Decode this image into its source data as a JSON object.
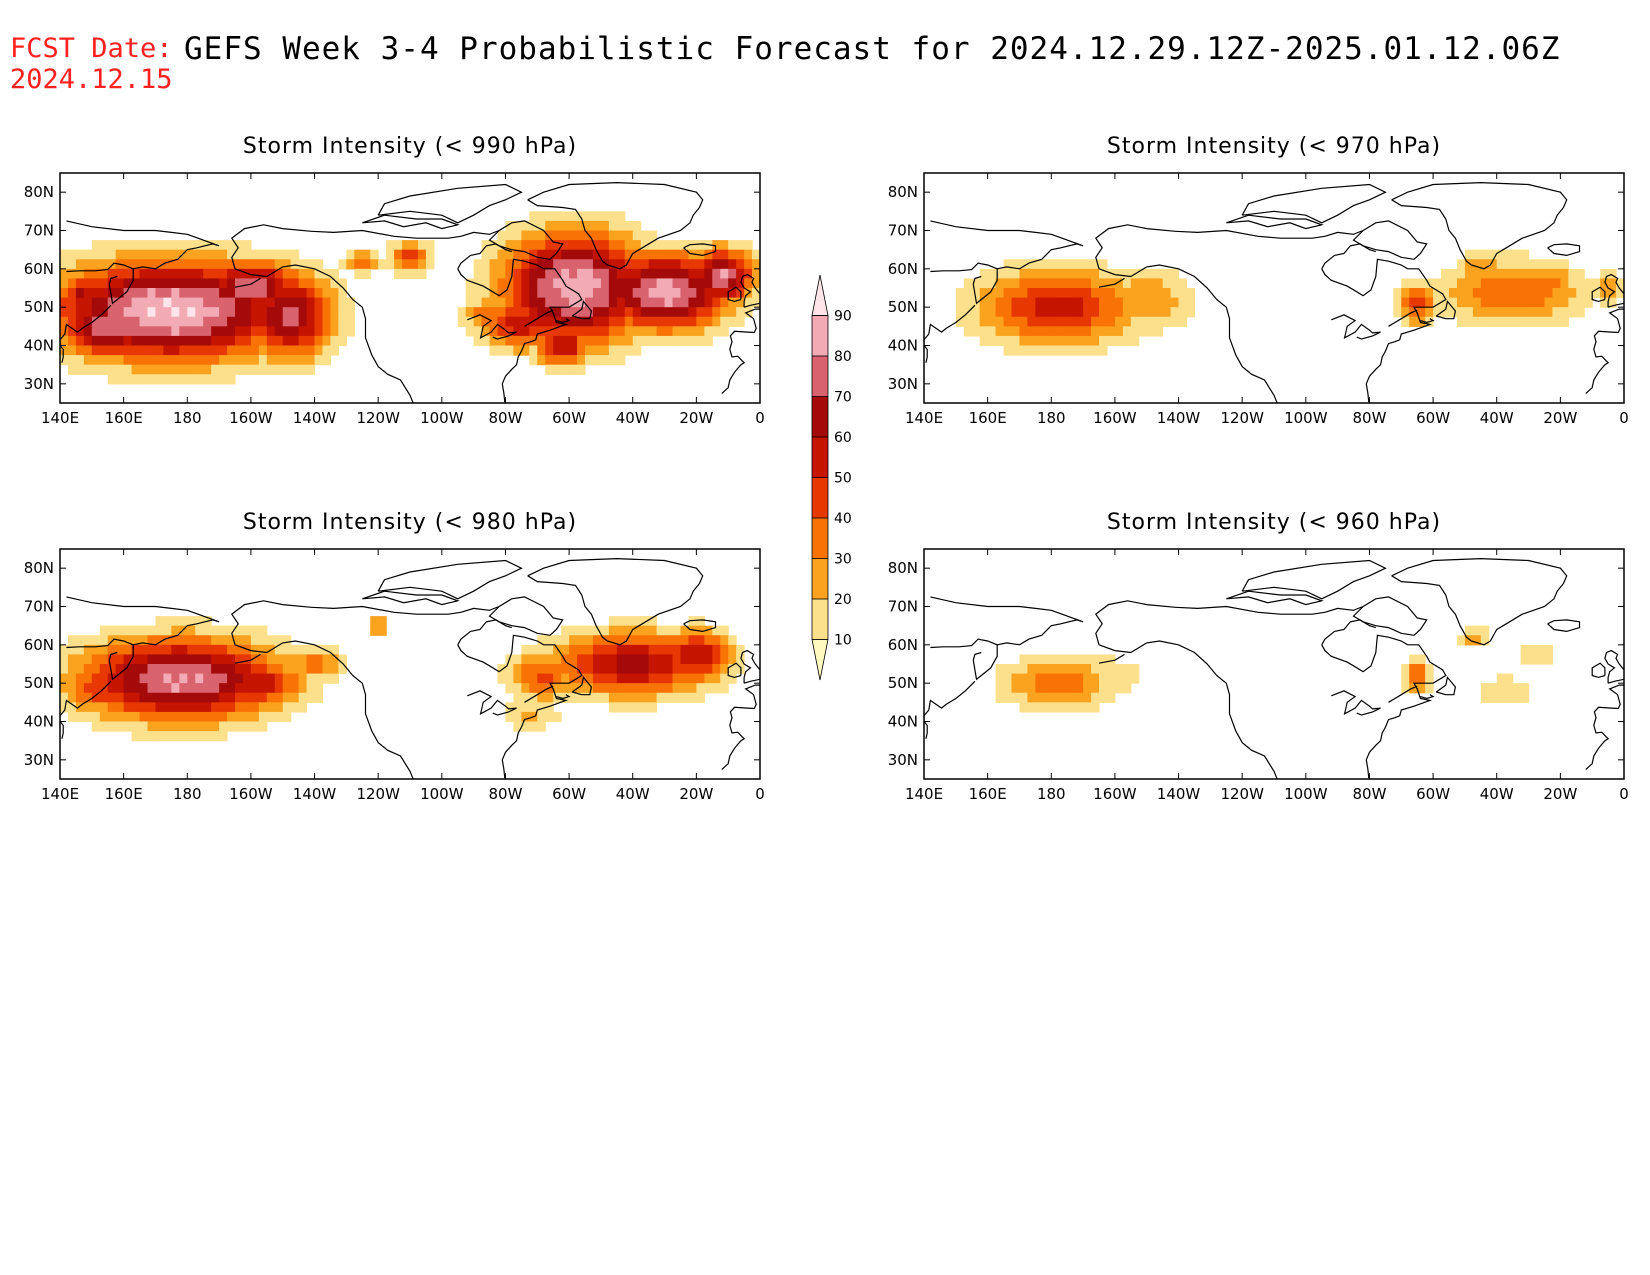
{
  "header": {
    "fcst_label": "FCST Date:",
    "fcst_date": "2024.12.15",
    "title": "GEFS Week 3-4 Probabilistic Forecast for 2024.12.29.12Z-2025.01.12.06Z"
  },
  "colors": {
    "levels": [
      10,
      20,
      30,
      40,
      50,
      60,
      70,
      80,
      90
    ],
    "fills": [
      "#fff9c0",
      "#fde08c",
      "#fba21e",
      "#f97304",
      "#e63800",
      "#c51400",
      "#a50a0a",
      "#d8626e",
      "#f2aab4",
      "#fde5ea"
    ]
  },
  "axes": {
    "lon_labels": [
      "140E",
      "160E",
      "180",
      "160W",
      "140W",
      "120W",
      "100W",
      "80W",
      "60W",
      "40W",
      "20W",
      "0"
    ],
    "lat_labels": [
      "80N",
      "70N",
      "60N",
      "50N",
      "40N",
      "30N"
    ]
  },
  "colorbar": {
    "labels": [
      "10",
      "20",
      "30",
      "40",
      "50",
      "60",
      "70",
      "80",
      "90"
    ]
  },
  "panels": [
    {
      "id": "p990",
      "title": "Storm Intensity (< 990 hPa)",
      "blobs": [
        {
          "lon": 175,
          "lat": 49,
          "sx": 26,
          "sy": 9,
          "peak": 96,
          "cut": 68
        },
        {
          "lon": -148,
          "lat": 48,
          "sx": 10,
          "sy": 8,
          "peak": 74
        },
        {
          "lon": -160,
          "lat": 55,
          "sx": 12,
          "sy": 5,
          "peak": 78
        },
        {
          "lon": 155,
          "lat": 45,
          "sx": 10,
          "sy": 6,
          "peak": 80
        },
        {
          "lon": 147,
          "lat": 53,
          "sx": 5,
          "sy": 4,
          "peak": 62
        },
        {
          "lon": -110,
          "lat": 63,
          "sx": 5,
          "sy": 3,
          "peak": 45
        },
        {
          "lon": -125,
          "lat": 62,
          "sx": 4,
          "sy": 2,
          "peak": 40
        },
        {
          "lon": -58,
          "lat": 55,
          "sx": 16,
          "sy": 10,
          "peak": 92,
          "cut": 66
        },
        {
          "lon": -30,
          "lat": 54,
          "sx": 14,
          "sy": 7,
          "peak": 90,
          "cut": 66
        },
        {
          "lon": -12,
          "lat": 58,
          "sx": 7,
          "sy": 5,
          "peak": 82
        },
        {
          "lon": -75,
          "lat": 46,
          "sx": 9,
          "sy": 5,
          "peak": 58
        },
        {
          "lon": -62,
          "lat": 40,
          "sx": 6,
          "sy": 4,
          "peak": 62
        },
        {
          "lon": -85,
          "lat": 48,
          "sx": 6,
          "sy": 3,
          "peak": 38
        }
      ]
    },
    {
      "id": "p970",
      "title": "Storm Intensity (< 970 hPa)",
      "blobs": [
        {
          "lon": -178,
          "lat": 50,
          "sx": 18,
          "sy": 7,
          "peak": 55
        },
        {
          "lon": 178,
          "lat": 50,
          "sx": 8,
          "sy": 4,
          "peak": 22
        },
        {
          "lon": -150,
          "lat": 52,
          "sx": 10,
          "sy": 6,
          "peak": 30
        },
        {
          "lon": -35,
          "lat": 54,
          "sx": 16,
          "sy": 6,
          "peak": 40
        },
        {
          "lon": -22,
          "lat": 57,
          "sx": 5,
          "sy": 3,
          "peak": 35
        },
        {
          "lon": -65,
          "lat": 51,
          "sx": 5,
          "sy": 4,
          "peak": 42
        },
        {
          "lon": -5,
          "lat": 55,
          "sx": 5,
          "sy": 3,
          "peak": 25
        },
        {
          "lon": -45,
          "lat": 60,
          "sx": 5,
          "sy": 3,
          "peak": 30
        }
      ]
    },
    {
      "id": "p980",
      "title": "Storm Intensity (< 980 hPa)",
      "blobs": [
        {
          "lon": 178,
          "lat": 51,
          "sx": 22,
          "sy": 7.5,
          "peak": 86,
          "cut": 62
        },
        {
          "lon": -160,
          "lat": 50,
          "sx": 12,
          "sy": 5,
          "peak": 60
        },
        {
          "lon": 152,
          "lat": 49,
          "sx": 8,
          "sy": 5,
          "peak": 48
        },
        {
          "lon": -140,
          "lat": 55,
          "sx": 6,
          "sy": 3,
          "peak": 38
        },
        {
          "lon": -40,
          "lat": 55,
          "sx": 18,
          "sy": 6,
          "peak": 64
        },
        {
          "lon": -20,
          "lat": 57,
          "sx": 8,
          "sy": 5,
          "peak": 60
        },
        {
          "lon": -68,
          "lat": 52,
          "sx": 8,
          "sy": 5,
          "peak": 42
        },
        {
          "lon": -72,
          "lat": 42,
          "sx": 7,
          "sy": 3,
          "peak": 22
        },
        {
          "lon": -120,
          "lat": 65,
          "sx": 2,
          "sy": 2,
          "peak": 42
        }
      ]
    },
    {
      "id": "p960",
      "title": "Storm Intensity (< 960 hPa)",
      "blobs": [
        {
          "lon": -178,
          "lat": 50,
          "sx": 13,
          "sy": 5,
          "peak": 36
        },
        {
          "lon": -165,
          "lat": 52,
          "sx": 11,
          "sy": 4,
          "peak": 20
        },
        {
          "lon": -65,
          "lat": 52,
          "sx": 3,
          "sy": 3,
          "peak": 40
        },
        {
          "lon": -47,
          "lat": 62,
          "sx": 3,
          "sy": 2,
          "peak": 30
        },
        {
          "lon": -38,
          "lat": 48,
          "sx": 7,
          "sy": 3,
          "peak": 20
        },
        {
          "lon": -28,
          "lat": 58,
          "sx": 5,
          "sy": 3,
          "peak": 18
        }
      ]
    }
  ]
}
